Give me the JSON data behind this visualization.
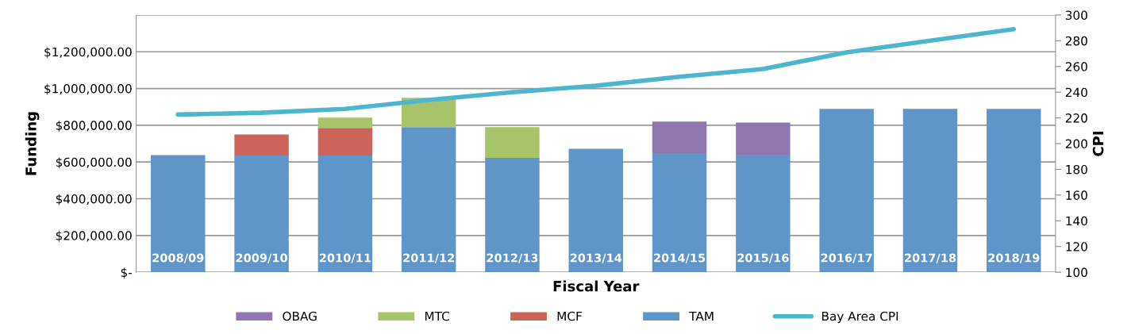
{
  "chart_data": {
    "type": "bar",
    "stacked": true,
    "xlabel": "Fiscal Year",
    "ylabel": "Funding",
    "y2label": "CPI",
    "categories": [
      "2008/09",
      "2009/10",
      "2010/11",
      "2011/12",
      "2012/13",
      "2013/14",
      "2014/15",
      "2015/16",
      "2016/17",
      "2017/18",
      "2018/19"
    ],
    "series": [
      {
        "name": "TAM",
        "color": "#5f95c8",
        "values": [
          637000,
          635000,
          635000,
          790000,
          622000,
          672000,
          648000,
          640000,
          889000,
          889000,
          889000
        ]
      },
      {
        "name": "MCF",
        "color": "#cd645c",
        "values": [
          null,
          115000,
          150000,
          null,
          null,
          null,
          null,
          null,
          null,
          null,
          null
        ]
      },
      {
        "name": "MTC",
        "color": "#a8c46b",
        "values": [
          null,
          null,
          57000,
          160000,
          168000,
          null,
          null,
          null,
          null,
          null,
          null
        ]
      },
      {
        "name": "OBAG",
        "color": "#8f78b0",
        "values": [
          null,
          null,
          null,
          null,
          null,
          null,
          172000,
          175000,
          null,
          null,
          null
        ]
      },
      {
        "name": "Bay Area CPI",
        "type": "line",
        "axis": "y2",
        "color": "#4db6cf",
        "values": [
          222.6,
          224,
          227,
          234,
          240,
          245,
          252,
          258,
          271,
          280,
          289
        ]
      }
    ],
    "ylim": [
      0,
      1400000
    ],
    "yticks": [
      {
        "value": 0,
        "label": "$-"
      },
      {
        "value": 200000,
        "label": "$200,000.00"
      },
      {
        "value": 400000,
        "label": "$400,000.00"
      },
      {
        "value": 600000,
        "label": "$600,000.00"
      },
      {
        "value": 800000,
        "label": "$800,000.00"
      },
      {
        "value": 1000000,
        "label": "$1,000,000.00"
      },
      {
        "value": 1200000,
        "label": "$1,200,000.00"
      },
      {
        "value": 1400000,
        "label": null
      }
    ],
    "y2lim": [
      100,
      300
    ],
    "y2ticks": [
      100,
      120,
      140,
      160,
      180,
      200,
      220,
      240,
      260,
      280,
      300
    ],
    "grid": "y",
    "legend": "bottom",
    "marker": "none"
  }
}
